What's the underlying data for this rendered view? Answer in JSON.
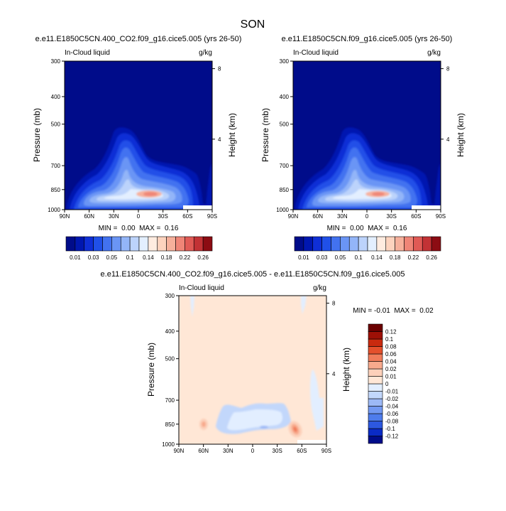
{
  "page": {
    "title": "SON"
  },
  "palettes": {
    "absolute": [
      "#000c8a",
      "#0017b0",
      "#0f2fd6",
      "#2050e8",
      "#4272f0",
      "#6a95f5",
      "#93b5f8",
      "#bcd3fb",
      "#e3efff",
      "#ffece0",
      "#fdd3be",
      "#f6b09b",
      "#ef8577",
      "#e05a55",
      "#c23235",
      "#8c0c13"
    ],
    "difference": [
      "#000c8a",
      "#0a2bc6",
      "#2d58e0",
      "#4e7cec",
      "#7399f2",
      "#9db9f6",
      "#c2d7fb",
      "#e2eeff",
      "#ffe7d6",
      "#fcd0ba",
      "#f8aa8d",
      "#f07c5a",
      "#e4502c",
      "#c92a0f",
      "#9e1006",
      "#6b0000"
    ]
  },
  "chart_data": [
    {
      "type": "contour",
      "title": "e.e11.E1850C5CN.400_CO2.f09_g16.cice5.005 (yrs 26-50)",
      "left_string": "In-Cloud liquid",
      "right_string": "g/kg",
      "xlabel": "",
      "ylabel": "Pressure (mb)",
      "ylabel_right": "Height (km)",
      "x_ticks": [
        "90N",
        "60N",
        "30N",
        "0",
        "30S",
        "60S",
        "90S"
      ],
      "x_values": [
        90,
        60,
        30,
        0,
        -30,
        -60,
        -90
      ],
      "y_ticks": [
        300,
        400,
        500,
        700,
        850,
        1000
      ],
      "y_scale": "log",
      "ylim": [
        1000,
        300
      ],
      "right_ticks": [
        4,
        8
      ],
      "stats": "MIN =  0.00  MAX =  0.16",
      "contour_levels": [
        0.01,
        0.02,
        0.03,
        0.04,
        0.05,
        0.07,
        0.1,
        0.12,
        0.14,
        0.16,
        0.18,
        0.2,
        0.22,
        0.24,
        0.26
      ],
      "colorbar_labels": [
        "0.01",
        "0.03",
        "0.05",
        "0.1",
        "0.14",
        "0.18",
        "0.22",
        "0.26"
      ]
    },
    {
      "type": "contour",
      "title": "e.e11.E1850C5CN.f09_g16.cice5.005 (yrs 26-50)",
      "left_string": "In-Cloud liquid",
      "right_string": "g/kg",
      "xlabel": "",
      "ylabel": "Pressure (mb)",
      "ylabel_right": "Height (km)",
      "x_ticks": [
        "90N",
        "60N",
        "30N",
        "0",
        "30S",
        "60S",
        "90S"
      ],
      "x_values": [
        90,
        60,
        30,
        0,
        -30,
        -60,
        -90
      ],
      "y_ticks": [
        300,
        400,
        500,
        700,
        850,
        1000
      ],
      "y_scale": "log",
      "ylim": [
        1000,
        300
      ],
      "right_ticks": [
        4,
        8
      ],
      "stats": "MIN =  0.00  MAX =  0.16",
      "contour_levels": [
        0.01,
        0.02,
        0.03,
        0.04,
        0.05,
        0.07,
        0.1,
        0.12,
        0.14,
        0.16,
        0.18,
        0.2,
        0.22,
        0.24,
        0.26
      ],
      "colorbar_labels": [
        "0.01",
        "0.03",
        "0.05",
        "0.1",
        "0.14",
        "0.18",
        "0.22",
        "0.26"
      ]
    },
    {
      "type": "contour",
      "title": "e.e11.E1850C5CN.400_CO2.f09_g16.cice5.005 - e.e11.E1850C5CN.f09_g16.cice5.005",
      "left_string": "In-Cloud liquid",
      "right_string": "g/kg",
      "xlabel": "",
      "ylabel": "Pressure (mb)",
      "ylabel_right": "Height (km)",
      "x_ticks": [
        "90N",
        "60N",
        "30N",
        "0",
        "30S",
        "60S",
        "90S"
      ],
      "x_values": [
        90,
        60,
        30,
        0,
        -30,
        -60,
        -90
      ],
      "y_ticks": [
        300,
        400,
        500,
        700,
        850,
        1000
      ],
      "y_scale": "log",
      "ylim": [
        1000,
        300
      ],
      "right_ticks": [
        4,
        8
      ],
      "stats": "MIN = -0.01  MAX =  0.02",
      "contour_levels": [
        -0.12,
        -0.1,
        -0.08,
        -0.06,
        -0.04,
        -0.02,
        -0.01,
        0,
        0.01,
        0.02,
        0.04,
        0.06,
        0.08,
        0.1,
        0.12
      ],
      "colorbar_labels": [
        "0.12",
        "0.1",
        "0.08",
        "0.06",
        "0.04",
        "0.02",
        "0.01",
        "0",
        "-0.01",
        "-0.02",
        "-0.04",
        "-0.06",
        "-0.08",
        "-0.1",
        "-0.12"
      ]
    }
  ]
}
